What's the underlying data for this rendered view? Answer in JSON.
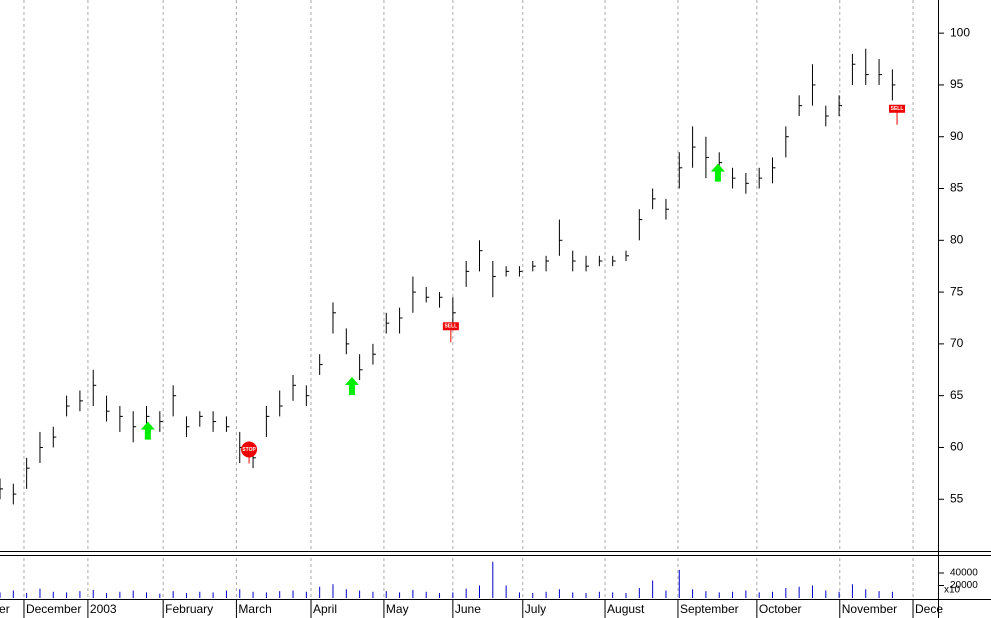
{
  "chart_data": {
    "type": "ohlc",
    "x": [
      0,
      4,
      8,
      12,
      16,
      20,
      24,
      28,
      32,
      36,
      40,
      44,
      48,
      52,
      56,
      60,
      64,
      68,
      72,
      76,
      80,
      84,
      88,
      92,
      96,
      100,
      104,
      108,
      112,
      116,
      120,
      124,
      128,
      132,
      136,
      140,
      144,
      148,
      152,
      156,
      160,
      164,
      168,
      172,
      176,
      180,
      184,
      188,
      192,
      196,
      200,
      204,
      208,
      212,
      216,
      220,
      224,
      228,
      232,
      236,
      240,
      244,
      248,
      252,
      256,
      260,
      264,
      268
    ],
    "high": [
      57,
      56.5,
      59,
      61.5,
      62,
      65,
      65.5,
      67.5,
      65,
      64,
      63.5,
      64,
      63.5,
      66,
      63,
      63.5,
      63.5,
      63,
      61.5,
      60,
      64,
      65.5,
      67,
      66,
      69,
      74,
      71.5,
      69,
      70,
      73,
      73.5,
      76.5,
      75.5,
      75,
      74.5,
      78,
      80,
      78,
      77.5,
      77.5,
      78,
      78.5,
      82,
      79,
      78.5,
      78.5,
      78.5,
      79,
      83,
      85,
      84,
      88.5,
      91,
      90,
      88.5,
      87,
      86.5,
      87,
      88,
      91,
      94,
      97,
      93,
      94,
      98,
      98.5,
      97.5,
      96.5
    ],
    "low": [
      55,
      54.5,
      56,
      58.5,
      60,
      63,
      63.5,
      64,
      62.5,
      61.5,
      60.5,
      61.5,
      61.5,
      63,
      61,
      62,
      61.5,
      61.5,
      58.5,
      58,
      61,
      63,
      64.5,
      64,
      67,
      71,
      69,
      66.5,
      68,
      71,
      71,
      73,
      74,
      73.5,
      72,
      75.5,
      77,
      74.5,
      76.5,
      76.5,
      77,
      77,
      78.5,
      77,
      77,
      77.5,
      77.5,
      78,
      80,
      83,
      82,
      85,
      87,
      86,
      86.5,
      85,
      84.5,
      85,
      85.5,
      88,
      92,
      93,
      91,
      92,
      95,
      95,
      95,
      93.5
    ],
    "close": [
      56,
      55.5,
      58,
      60,
      61,
      64,
      64.5,
      66,
      63.5,
      63,
      62,
      63,
      62.5,
      65,
      62,
      63,
      62.5,
      62,
      60,
      59,
      63,
      64,
      66,
      65,
      68,
      73,
      70,
      67.5,
      69,
      72,
      72.5,
      75,
      74.5,
      74.5,
      73,
      77,
      79,
      76.5,
      77,
      77,
      77.5,
      78,
      80,
      78,
      77.5,
      78,
      78,
      78.5,
      82,
      84,
      83,
      87,
      89,
      88,
      87.5,
      86,
      85.5,
      86,
      87,
      90,
      93,
      95,
      92,
      93,
      97,
      96,
      96,
      95
    ],
    "volume": [
      9000,
      12000,
      8000,
      15000,
      10000,
      9000,
      11000,
      13000,
      8000,
      10000,
      12000,
      9000,
      7000,
      11000,
      8000,
      10000,
      9000,
      12000,
      14000,
      10000,
      9000,
      11000,
      12000,
      10000,
      18000,
      22000,
      14000,
      12000,
      10000,
      11000,
      9000,
      13000,
      10000,
      8000,
      9000,
      15000,
      20000,
      58000,
      20000,
      9000,
      8000,
      10000,
      14000,
      9000,
      8000,
      10000,
      9000,
      8000,
      16000,
      28000,
      12000,
      45000,
      14000,
      11000,
      9000,
      10000,
      12000,
      9000,
      10000,
      16000,
      18000,
      20000,
      12000,
      10000,
      22000,
      14000,
      11000,
      10000
    ],
    "color": "#000000",
    "volume_color": "#0000cc",
    "xlim": [
      0,
      281.7
    ],
    "ylim": [
      50.1,
      103.2
    ],
    "vlim": [
      0,
      64000
    ],
    "yticks": [
      55,
      60,
      65,
      70,
      75,
      80,
      85,
      90,
      95,
      100
    ],
    "vticks": [
      20000,
      40000
    ],
    "volume_axis_label": "x10",
    "xticks": [
      {
        "value": -0.9,
        "label": "er"
      },
      {
        "value": 7.2,
        "label": "December"
      },
      {
        "value": 26.4,
        "label": "2003"
      },
      {
        "value": 49,
        "label": "February"
      },
      {
        "value": 71,
        "label": "March"
      },
      {
        "value": 93.4,
        "label": "April"
      },
      {
        "value": 115.3,
        "label": "May"
      },
      {
        "value": 136,
        "label": "June"
      },
      {
        "value": 157,
        "label": "July"
      },
      {
        "value": 181.7,
        "label": "August"
      },
      {
        "value": 203.6,
        "label": "September"
      },
      {
        "value": 227.3,
        "label": "October"
      },
      {
        "value": 252.2,
        "label": "November"
      },
      {
        "value": 274.2,
        "label": "Dece"
      }
    ],
    "grid": true,
    "signals": [
      {
        "kind": "buy",
        "x": 44.4,
        "price": 62.5
      },
      {
        "kind": "stop",
        "x": 74.8,
        "price": 59.8,
        "label": "STOP"
      },
      {
        "kind": "buy",
        "x": 105.7,
        "price": 66.8
      },
      {
        "kind": "sell",
        "x": 135.4,
        "price": 71.7,
        "label": "SELL"
      },
      {
        "kind": "buy",
        "x": 215.6,
        "price": 87.4
      },
      {
        "kind": "sell",
        "x": 269.4,
        "price": 92.7,
        "label": "SELL"
      }
    ]
  }
}
